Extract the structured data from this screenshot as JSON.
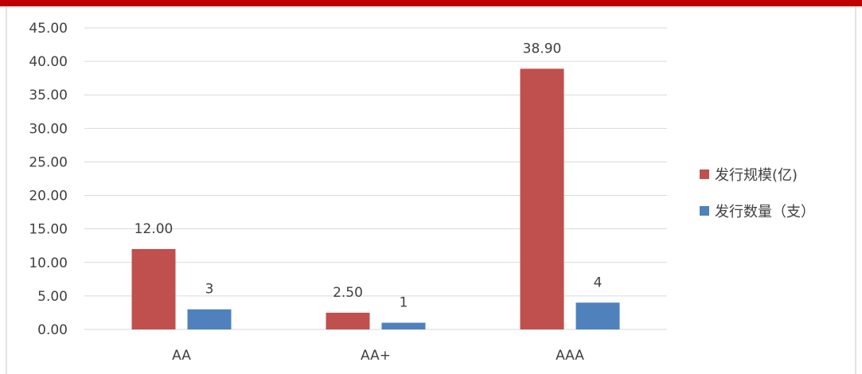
{
  "chart_data": {
    "type": "bar",
    "categories": [
      "AA",
      "AA+",
      "AAA"
    ],
    "series": [
      {
        "name": "发行规模(亿)",
        "values": [
          12.0,
          2.5,
          38.9
        ],
        "labels": [
          "12.00",
          "2.50",
          "38.90"
        ],
        "color": "#c0504d"
      },
      {
        "name": "发行数量（支）",
        "values": [
          3,
          1,
          4
        ],
        "labels": [
          "3",
          "1",
          "4"
        ],
        "color": "#4f81bd"
      }
    ],
    "ylim": [
      0,
      45
    ],
    "yticks": [
      "0.00",
      "5.00",
      "10.00",
      "15.00",
      "20.00",
      "25.00",
      "30.00",
      "35.00",
      "40.00",
      "45.00"
    ],
    "grid": true,
    "legend_position": "right",
    "title": "",
    "xlabel": "",
    "ylabel": ""
  },
  "colors": {
    "accent_bar": "#c00000",
    "gridline": "#d9d9d9"
  }
}
